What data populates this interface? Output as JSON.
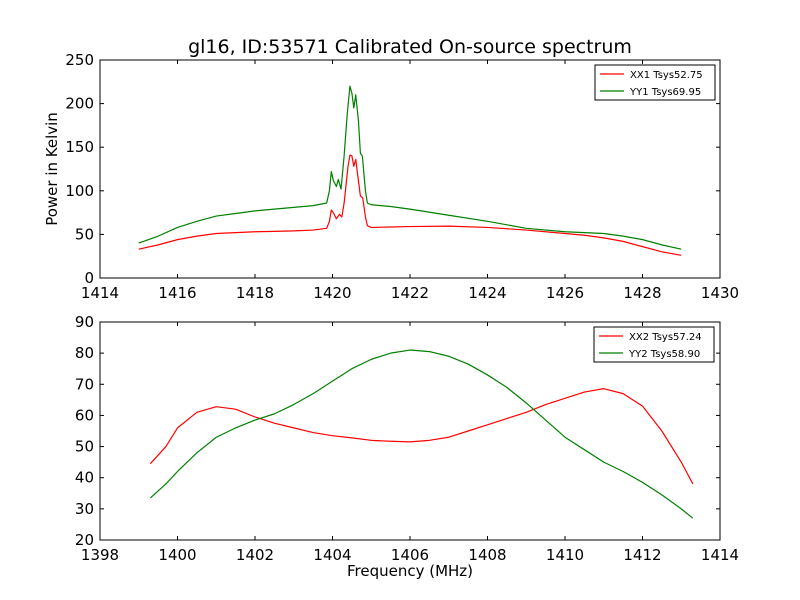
{
  "chart_data": [
    {
      "type": "line",
      "title": "gl16, ID:53571 Calibrated On-source spectrum",
      "xlabel": "",
      "ylabel": "Power in Kelvin",
      "xlim": [
        1414,
        1430
      ],
      "ylim": [
        0,
        250
      ],
      "xticks": [
        1414,
        1416,
        1418,
        1420,
        1422,
        1424,
        1426,
        1428,
        1430
      ],
      "yticks": [
        0,
        50,
        100,
        150,
        200,
        250
      ],
      "legend": "top-right",
      "grid": false,
      "series": [
        {
          "name": "XX1 Tsys52.75",
          "color": "#ff0000",
          "points": [
            [
              1415.0,
              33
            ],
            [
              1415.5,
              38
            ],
            [
              1416.0,
              44
            ],
            [
              1416.5,
              48
            ],
            [
              1417.0,
              51
            ],
            [
              1417.5,
              52
            ],
            [
              1418.0,
              53
            ],
            [
              1418.5,
              53.5
            ],
            [
              1419.0,
              54
            ],
            [
              1419.5,
              55
            ],
            [
              1419.85,
              57
            ],
            [
              1419.92,
              65
            ],
            [
              1419.97,
              78
            ],
            [
              1420.02,
              75
            ],
            [
              1420.1,
              68
            ],
            [
              1420.18,
              73
            ],
            [
              1420.24,
              70
            ],
            [
              1420.3,
              86
            ],
            [
              1420.4,
              128
            ],
            [
              1420.45,
              141
            ],
            [
              1420.5,
              140
            ],
            [
              1420.55,
              128
            ],
            [
              1420.6,
              136
            ],
            [
              1420.65,
              118
            ],
            [
              1420.72,
              94
            ],
            [
              1420.78,
              92
            ],
            [
              1420.85,
              70
            ],
            [
              1420.9,
              60
            ],
            [
              1421.0,
              58
            ],
            [
              1421.5,
              58.5
            ],
            [
              1422.0,
              59
            ],
            [
              1423.0,
              59.5
            ],
            [
              1424.0,
              58
            ],
            [
              1425.0,
              55
            ],
            [
              1426.0,
              51
            ],
            [
              1426.5,
              49
            ],
            [
              1427.0,
              46
            ],
            [
              1427.5,
              42
            ],
            [
              1428.0,
              36
            ],
            [
              1428.5,
              30
            ],
            [
              1429.0,
              26
            ]
          ]
        },
        {
          "name": "YY1 Tsys69.95",
          "color": "#008000",
          "points": [
            [
              1415.0,
              40
            ],
            [
              1415.5,
              48
            ],
            [
              1416.0,
              58
            ],
            [
              1416.5,
              65
            ],
            [
              1417.0,
              71
            ],
            [
              1417.5,
              74
            ],
            [
              1418.0,
              77
            ],
            [
              1418.5,
              79
            ],
            [
              1419.0,
              81
            ],
            [
              1419.5,
              83
            ],
            [
              1419.85,
              86
            ],
            [
              1419.92,
              100
            ],
            [
              1419.97,
              122
            ],
            [
              1420.02,
              112
            ],
            [
              1420.1,
              105
            ],
            [
              1420.15,
              113
            ],
            [
              1420.22,
              102
            ],
            [
              1420.3,
              140
            ],
            [
              1420.38,
              188
            ],
            [
              1420.45,
              220
            ],
            [
              1420.5,
              212
            ],
            [
              1420.55,
              195
            ],
            [
              1420.6,
              210
            ],
            [
              1420.67,
              180
            ],
            [
              1420.72,
              143
            ],
            [
              1420.77,
              140
            ],
            [
              1420.85,
              100
            ],
            [
              1420.9,
              86
            ],
            [
              1421.0,
              84
            ],
            [
              1421.5,
              82
            ],
            [
              1422.0,
              79
            ],
            [
              1423.0,
              72
            ],
            [
              1424.0,
              65
            ],
            [
              1425.0,
              57
            ],
            [
              1426.0,
              53
            ],
            [
              1427.0,
              51
            ],
            [
              1427.5,
              48
            ],
            [
              1428.0,
              44
            ],
            [
              1428.5,
              38
            ],
            [
              1429.0,
              33
            ]
          ]
        }
      ]
    },
    {
      "type": "line",
      "title": "",
      "xlabel": "Frequency (MHz)",
      "ylabel": "",
      "xlim": [
        1398,
        1414
      ],
      "ylim": [
        20,
        90
      ],
      "xticks": [
        1398,
        1400,
        1402,
        1404,
        1406,
        1408,
        1410,
        1412,
        1414
      ],
      "yticks": [
        20,
        30,
        40,
        50,
        60,
        70,
        80,
        90
      ],
      "legend": "top-right",
      "grid": false,
      "series": [
        {
          "name": "XX2 Tsys57.24",
          "color": "#ff0000",
          "points": [
            [
              1399.3,
              44.5
            ],
            [
              1399.7,
              50
            ],
            [
              1400.0,
              56
            ],
            [
              1400.5,
              61
            ],
            [
              1401.0,
              62.8
            ],
            [
              1401.5,
              62
            ],
            [
              1402.0,
              59.5
            ],
            [
              1402.5,
              57.5
            ],
            [
              1403.0,
              56
            ],
            [
              1403.5,
              54.5
            ],
            [
              1404.0,
              53.5
            ],
            [
              1404.5,
              52.8
            ],
            [
              1405.0,
              52
            ],
            [
              1405.5,
              51.7
            ],
            [
              1406.0,
              51.5
            ],
            [
              1406.5,
              52
            ],
            [
              1407.0,
              53
            ],
            [
              1407.5,
              55
            ],
            [
              1408.0,
              57
            ],
            [
              1408.5,
              59
            ],
            [
              1409.0,
              61
            ],
            [
              1409.5,
              63.5
            ],
            [
              1410.0,
              65.5
            ],
            [
              1410.5,
              67.5
            ],
            [
              1411.0,
              68.6
            ],
            [
              1411.5,
              67
            ],
            [
              1412.0,
              63
            ],
            [
              1412.5,
              55
            ],
            [
              1413.0,
              45
            ],
            [
              1413.3,
              38
            ]
          ]
        },
        {
          "name": "YY2 Tsys58.90",
          "color": "#008000",
          "points": [
            [
              1399.3,
              33.5
            ],
            [
              1399.7,
              38
            ],
            [
              1400.0,
              42
            ],
            [
              1400.5,
              48
            ],
            [
              1401.0,
              53
            ],
            [
              1401.5,
              56
            ],
            [
              1402.0,
              58.5
            ],
            [
              1402.5,
              60.5
            ],
            [
              1403.0,
              63.5
            ],
            [
              1403.5,
              67
            ],
            [
              1404.0,
              71
            ],
            [
              1404.5,
              75
            ],
            [
              1405.0,
              78
            ],
            [
              1405.5,
              80
            ],
            [
              1406.0,
              81
            ],
            [
              1406.5,
              80.5
            ],
            [
              1407.0,
              79
            ],
            [
              1407.5,
              76.5
            ],
            [
              1408.0,
              73
            ],
            [
              1408.5,
              69
            ],
            [
              1409.0,
              64
            ],
            [
              1409.5,
              58.5
            ],
            [
              1410.0,
              53
            ],
            [
              1410.5,
              49
            ],
            [
              1411.0,
              45
            ],
            [
              1411.5,
              42
            ],
            [
              1412.0,
              38.5
            ],
            [
              1412.5,
              34.5
            ],
            [
              1413.0,
              30
            ],
            [
              1413.3,
              27
            ]
          ]
        }
      ]
    }
  ]
}
